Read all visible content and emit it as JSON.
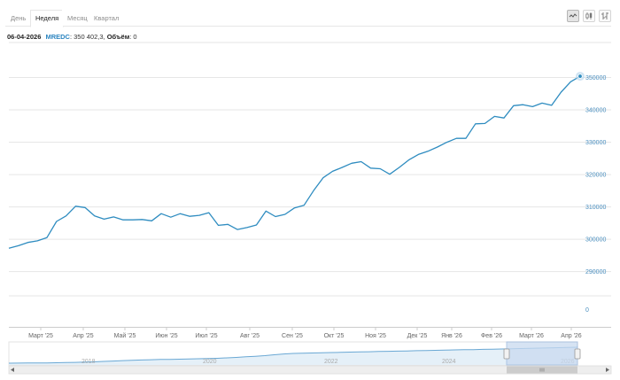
{
  "tabs": [
    {
      "label": "День",
      "active": false
    },
    {
      "label": "Неделя",
      "active": true
    },
    {
      "label": "Месяц",
      "active": false
    },
    {
      "label": "Квартал",
      "active": false
    }
  ],
  "tools": [
    "line-chart-icon",
    "candlestick-icon",
    "ohlc-icon"
  ],
  "info": {
    "date": "06-04-2026",
    "ticker": "MREDC",
    "price_text": ": 350 402,3,",
    "volume_label": "Объём",
    "volume_text": ": 0"
  },
  "colors": {
    "series": "#2e8cc0",
    "grid": "#e6e6e6",
    "navigator_fill": "#c9daf0",
    "axis_label": "#4b8fbf"
  },
  "chart_data": {
    "type": "line",
    "series": [
      {
        "name": "MREDC",
        "values": [
          297200,
          298000,
          299000,
          299500,
          300500,
          305500,
          307200,
          310200,
          309800,
          307200,
          306200,
          306900,
          306000,
          306000,
          306100,
          305700,
          307900,
          306800,
          307900,
          307100,
          307400,
          308200,
          304300,
          304600,
          303000,
          303600,
          304400,
          308700,
          307000,
          307700,
          309700,
          310500,
          315000,
          319000,
          321000,
          322200,
          323500,
          324000,
          322000,
          321800,
          320100,
          322200,
          324500,
          326200,
          327200,
          328500,
          330000,
          331200,
          331200,
          335700,
          335800,
          338000,
          337500,
          341300,
          341600,
          341000,
          342100,
          341400,
          345500,
          348700,
          350400
        ]
      }
    ],
    "x_tick_labels": [
      "Март '25",
      "Апр '25",
      "Май '25",
      "Июн '25",
      "Июл '25",
      "Авг '25",
      "Сен '25",
      "Окт '25",
      "Ноя '25",
      "Дек '25",
      "Янв '26",
      "Фев '26",
      "Март '26",
      "Апр '26"
    ],
    "y_ticks": [
      290000,
      300000,
      310000,
      320000,
      330000,
      340000,
      350000
    ],
    "y_zero_label": "0",
    "ylim": [
      285500,
      357000
    ],
    "last_point": {
      "date": "06-04-2026",
      "value": 350402.3
    },
    "grid": true,
    "navigator": {
      "x_labels": [
        "2018",
        "2020",
        "2022",
        "2024",
        "2026"
      ],
      "values": [
        100,
        101,
        102,
        102,
        103,
        104,
        106,
        108,
        111,
        113,
        117,
        121,
        125,
        128,
        131,
        134,
        136,
        137,
        139,
        141,
        143,
        145,
        148,
        152,
        156,
        162,
        168,
        174,
        182,
        190,
        195,
        198,
        200,
        202,
        204,
        206,
        208,
        210,
        212,
        214,
        216,
        218,
        220,
        222,
        224,
        226,
        228,
        230,
        232,
        233,
        235,
        237,
        239,
        241,
        243,
        245,
        247,
        250,
        252,
        254,
        256
      ],
      "selected_range": "Март '25 – Апр '26"
    }
  }
}
